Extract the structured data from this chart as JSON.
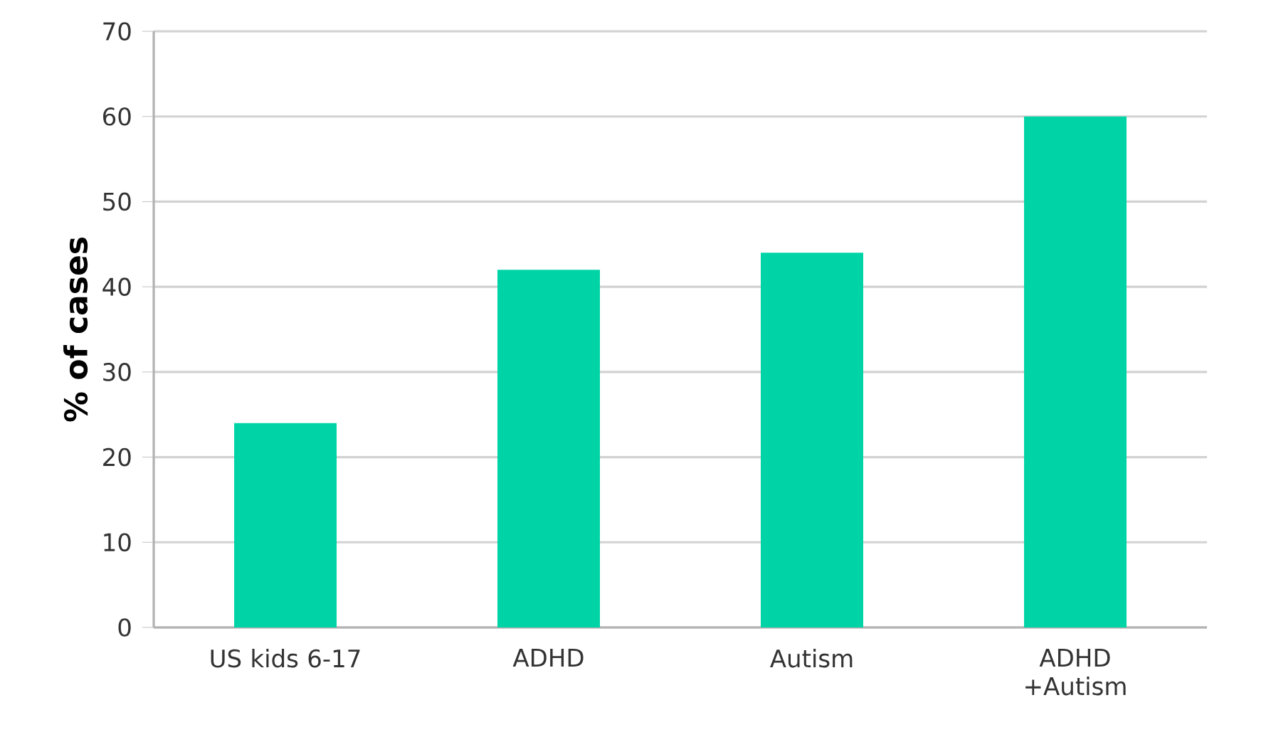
{
  "chart_data": {
    "type": "bar",
    "ylabel": "% of cases",
    "categories": [
      "US kids 6-17",
      "ADHD",
      "Autism",
      "ADHD +Autism"
    ],
    "values": [
      24,
      42,
      44,
      60
    ],
    "color": "#00d4a6",
    "ylim": [
      0,
      70
    ],
    "yticks": [
      0,
      10,
      20,
      30,
      40,
      50,
      60,
      70
    ],
    "grid": "y"
  }
}
